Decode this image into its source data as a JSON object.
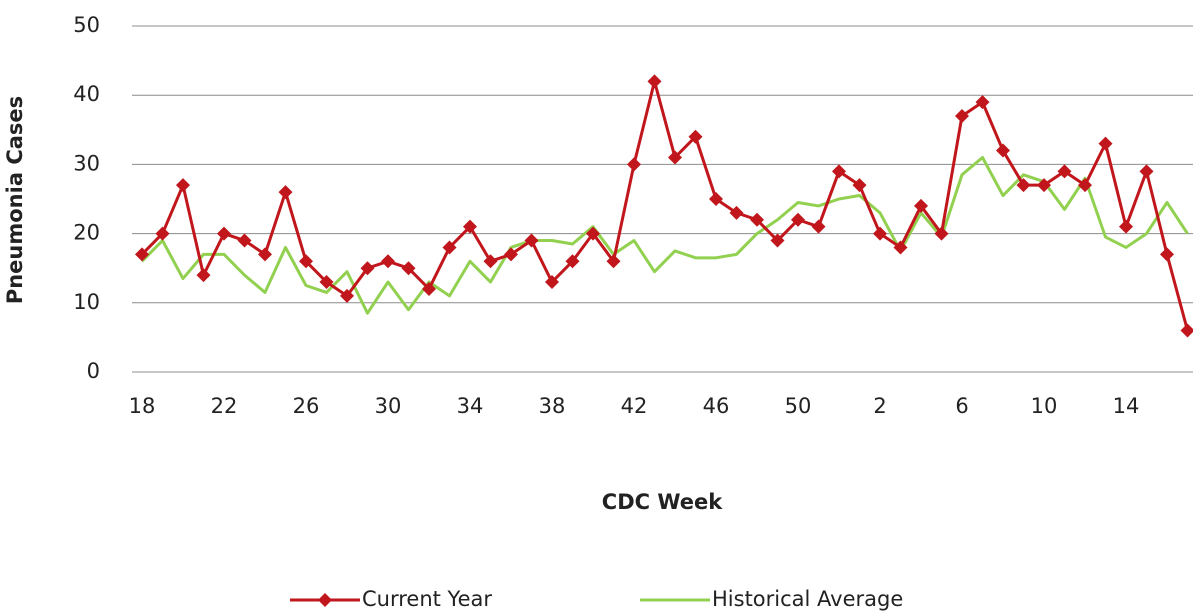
{
  "chart_data": {
    "type": "line",
    "x_label": "CDC Week",
    "y_label": "Pneumonia Cases",
    "categories": [
      "18",
      null,
      null,
      null,
      "22",
      null,
      null,
      null,
      "26",
      null,
      null,
      null,
      "30",
      null,
      null,
      null,
      "34",
      null,
      null,
      null,
      "38",
      null,
      null,
      null,
      "42",
      null,
      null,
      null,
      "46",
      null,
      null,
      null,
      "50",
      null,
      null,
      null,
      "2",
      null,
      null,
      null,
      "6",
      null,
      null,
      null,
      "10",
      null,
      null,
      null,
      "14",
      null,
      null,
      null
    ],
    "series": [
      {
        "name": "Current Year",
        "color": "#c0161c",
        "marker": "diamond",
        "values": [
          17,
          20,
          27,
          14,
          20,
          19,
          17,
          26,
          16,
          13,
          11,
          15,
          16,
          15,
          12,
          18,
          21,
          16,
          17,
          19,
          13,
          16,
          20,
          16,
          30,
          42,
          31,
          34,
          25,
          23,
          22,
          19,
          22,
          21,
          29,
          27,
          20,
          18,
          24,
          20,
          37,
          39,
          32,
          27,
          27,
          29,
          27,
          33,
          21,
          29,
          17,
          6
        ]
      },
      {
        "name": "Historical Average",
        "color": "#92d050",
        "values": [
          16,
          19,
          13.5,
          17,
          17,
          14,
          11.5,
          18,
          12.5,
          11.5,
          14.5,
          8.5,
          13,
          9,
          13,
          11,
          16,
          13,
          18,
          19,
          19,
          18.5,
          21,
          17,
          19,
          14.5,
          17.5,
          16.5,
          16.5,
          17,
          20,
          22,
          24.5,
          24,
          25,
          25.5,
          23,
          17.5,
          23,
          19.5,
          28.5,
          31,
          25.5,
          28.5,
          27.5,
          23.5,
          28,
          19.5,
          18,
          20,
          24.5,
          20
        ]
      }
    ],
    "ylim": [
      0,
      50
    ],
    "yticks": [
      0,
      10,
      20,
      30,
      40,
      50
    ],
    "grid": true
  }
}
